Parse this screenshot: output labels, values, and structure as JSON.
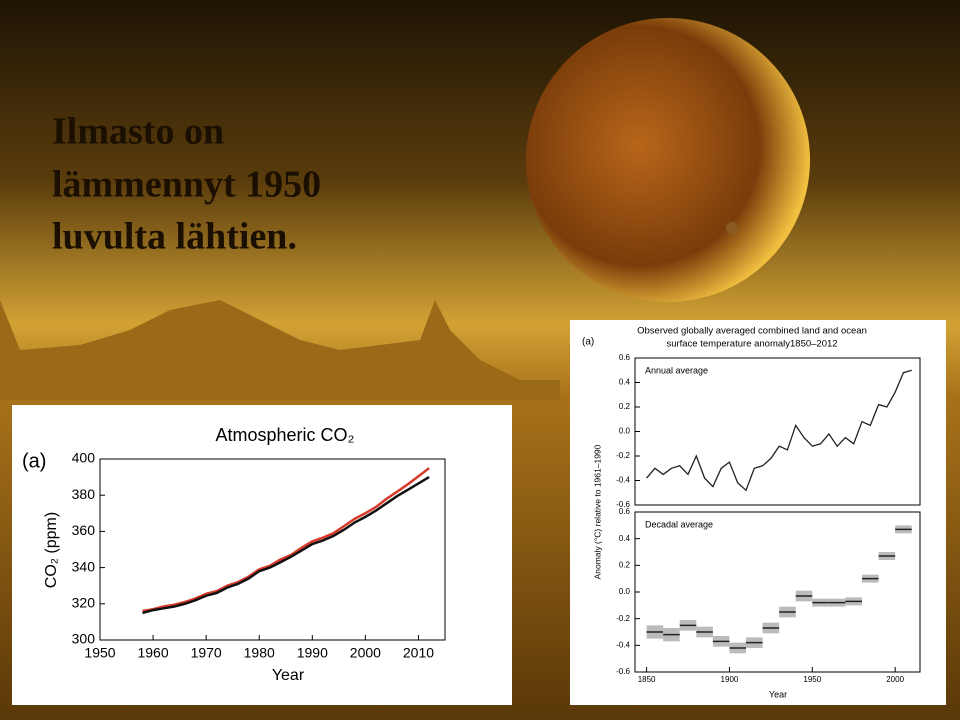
{
  "slide": {
    "title": [
      "Ilmasto on",
      "lämmennyt 1950",
      "luvulta lähtien."
    ]
  },
  "chart_data": [
    {
      "type": "line",
      "panel": "(a)",
      "title": "Atmospheric CO₂",
      "xlabel": "Year",
      "ylabel": "CO₂ (ppm)",
      "x": [
        1958,
        1960,
        1962,
        1964,
        1966,
        1968,
        1970,
        1972,
        1974,
        1976,
        1978,
        1980,
        1982,
        1984,
        1986,
        1988,
        1990,
        1992,
        1994,
        1996,
        1998,
        2000,
        2002,
        2004,
        2006,
        2008,
        2010,
        2012
      ],
      "series": [
        {
          "color": "#d83a2a",
          "values": [
            316,
            317,
            318.5,
            319.5,
            321,
            323,
            325.5,
            327,
            330,
            332,
            335,
            339,
            341,
            344.5,
            347,
            351,
            354.5,
            356.5,
            359,
            363,
            367,
            370,
            373.5,
            378,
            382,
            386,
            390.5,
            395
          ]
        },
        {
          "color": "#111111",
          "values": [
            315,
            316.5,
            317.5,
            318.5,
            320,
            322,
            324.5,
            326,
            329,
            331,
            334,
            338,
            340,
            343,
            346,
            349.5,
            353,
            355,
            357.5,
            361,
            365,
            368,
            371.5,
            375.5,
            379.5,
            383,
            386.5,
            390
          ]
        }
      ],
      "xlim": [
        1950,
        2015
      ],
      "ylim": [
        300,
        400
      ],
      "xticks": [
        1950,
        1960,
        1970,
        1980,
        1990,
        2000,
        2010
      ],
      "yticks": [
        300,
        320,
        340,
        360,
        380,
        400
      ]
    },
    {
      "type": "line",
      "panel": "(a)",
      "title": [
        "Observed globally averaged combined land and ocean",
        "surface temperature anomaly1850–2012"
      ],
      "subtitle": "Annual average",
      "ylabel": "Anomaly (°C) relative to 1961–1990",
      "x": [
        1850,
        1855,
        1860,
        1865,
        1870,
        1875,
        1880,
        1885,
        1890,
        1895,
        1900,
        1905,
        1910,
        1915,
        1920,
        1925,
        1930,
        1935,
        1940,
        1945,
        1950,
        1955,
        1960,
        1965,
        1970,
        1975,
        1980,
        1985,
        1990,
        1995,
        2000,
        2005,
        2010
      ],
      "series": [
        {
          "color": "#222222",
          "values": [
            -0.38,
            -0.3,
            -0.35,
            -0.3,
            -0.28,
            -0.35,
            -0.2,
            -0.38,
            -0.45,
            -0.3,
            -0.25,
            -0.42,
            -0.48,
            -0.3,
            -0.28,
            -0.22,
            -0.12,
            -0.15,
            0.05,
            -0.05,
            -0.12,
            -0.1,
            -0.02,
            -0.12,
            -0.05,
            -0.1,
            0.08,
            0.05,
            0.22,
            0.2,
            0.32,
            0.48,
            0.5
          ]
        }
      ],
      "xlim": [
        1843,
        2015
      ],
      "ylim": [
        -0.6,
        0.6
      ],
      "yticks": [
        -0.6,
        -0.4,
        -0.2,
        {
          "value": 0,
          "label": "0.0"
        },
        0.2,
        0.4,
        0.6
      ]
    },
    {
      "type": "box",
      "subtitle": "Decadal average",
      "xlabel": "Year",
      "x": [
        1855,
        1865,
        1875,
        1885,
        1895,
        1905,
        1915,
        1925,
        1935,
        1945,
        1955,
        1965,
        1975,
        1985,
        1995,
        2005
      ],
      "values": [
        -0.3,
        -0.32,
        -0.25,
        -0.3,
        -0.37,
        -0.42,
        -0.38,
        -0.27,
        -0.15,
        -0.03,
        -0.08,
        -0.08,
        -0.07,
        0.1,
        0.27,
        0.47
      ],
      "errors": [
        0.05,
        0.05,
        0.04,
        0.04,
        0.04,
        0.04,
        0.04,
        0.04,
        0.04,
        0.04,
        0.03,
        0.03,
        0.03,
        0.03,
        0.03,
        0.03
      ],
      "xlim": [
        1843,
        2015
      ],
      "ylim": [
        -0.6,
        0.6
      ],
      "xticks": [
        1850,
        1900,
        1950,
        2000
      ],
      "yticks": [
        -0.6,
        -0.4,
        -0.2,
        {
          "value": 0,
          "label": "0.0"
        },
        0.2,
        0.4,
        0.6
      ]
    }
  ]
}
